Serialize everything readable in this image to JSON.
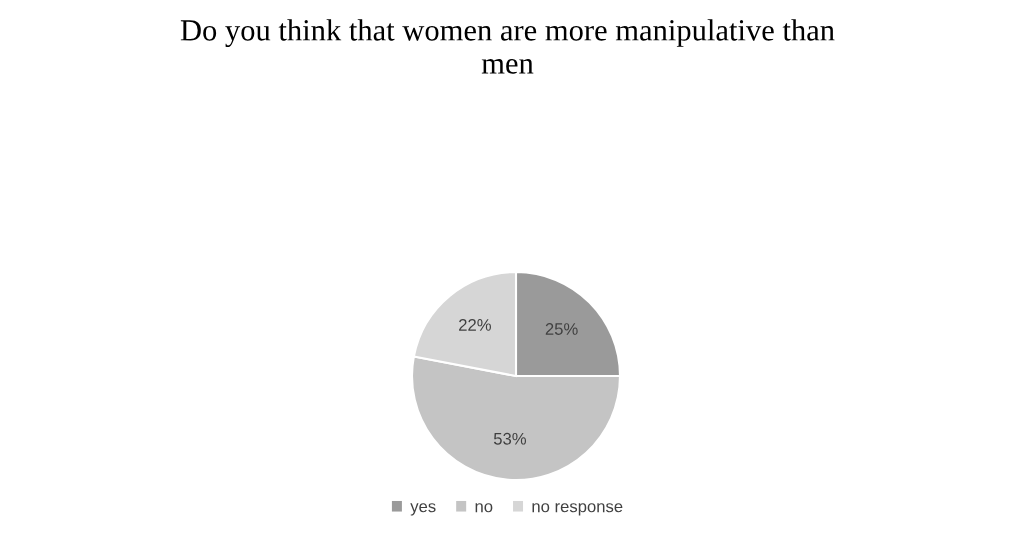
{
  "chart_data": {
    "type": "pie",
    "title": "Do you think that women are more manipulative than\nmen",
    "categories": [
      "yes",
      "no",
      "no response"
    ],
    "values": [
      25,
      53,
      22
    ],
    "colors": [
      "#9a9a9a",
      "#c4c4c4",
      "#d6d6d6"
    ],
    "value_labels": [
      "25%",
      "53%",
      "22%"
    ],
    "legend": "bottom"
  }
}
